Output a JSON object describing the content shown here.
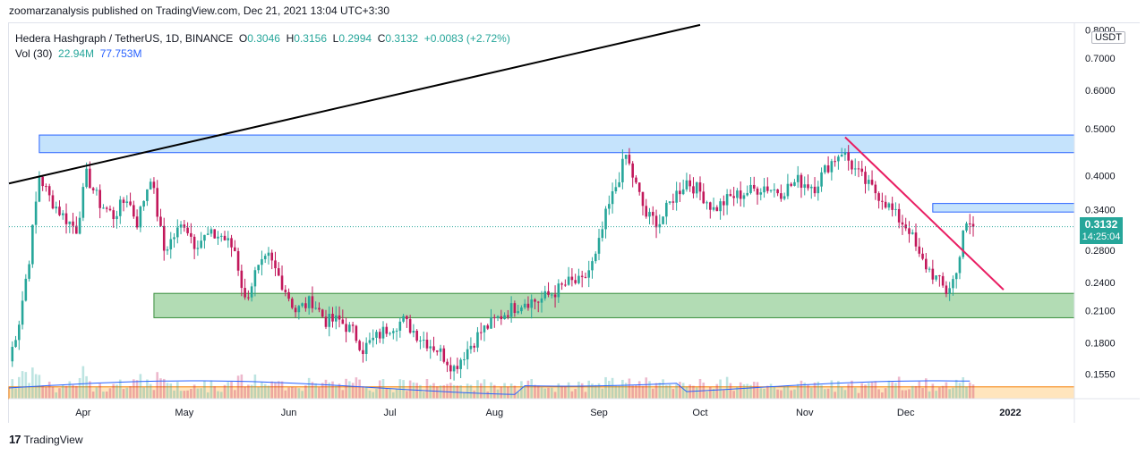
{
  "header": {
    "publish_line": "zoomarzanalysis published on TradingView.com, Dec 21, 2021 13:04 UTC+3:30"
  },
  "legend": {
    "symbol": "Hedera Hashgraph / TetherUS, 1D, BINANCE",
    "open_key": "O",
    "open": "0.3046",
    "high_key": "H",
    "high": "0.3156",
    "low_key": "L",
    "low": "0.2994",
    "close_key": "C",
    "close": "0.3132",
    "change": "+0.0083 (+2.72%)",
    "vol_label": "Vol (30)",
    "vol_value": "22.94M",
    "vol_ma": "77.753M"
  },
  "price_axis": {
    "currency": "USDT",
    "last_price": "0.3132",
    "countdown": "14:25:04"
  },
  "footer": {
    "logo_mark": "17",
    "logo_text": "TradingView"
  },
  "colors": {
    "up": "#26a69a",
    "down": "#c2185b",
    "trendline_black": "#000000",
    "trendline_pink": "#e91e63",
    "resistance_zone": "#bbdefb",
    "support_zone": "#a5d6a7",
    "volume_zone": "#ffe0b2",
    "volume_ma": "#2962ff"
  },
  "chart_data": {
    "type": "candlestick",
    "title": "Hedera Hashgraph / TetherUS, 1D, BINANCE",
    "scale": "log",
    "ylim": [
      0.138,
      0.83
    ],
    "y_ticks": [
      "0.1550",
      "0.1800",
      "0.2100",
      "0.2400",
      "0.2800",
      "0.3400",
      "0.4000",
      "0.5000",
      "0.6000",
      "0.7000",
      "0.8000"
    ],
    "x_ticks": [
      "Apr",
      "May",
      "Jun",
      "Jul",
      "Aug",
      "Sep",
      "Oct",
      "Nov",
      "Dec",
      "2022"
    ],
    "x_range": [
      "2021-03-10",
      "2022-01-20"
    ],
    "last_close": 0.3132,
    "price_path": [
      [
        "2021-03-10",
        0.165
      ],
      [
        "2021-03-13",
        0.2
      ],
      [
        "2021-03-16",
        0.27
      ],
      [
        "2021-03-19",
        0.4
      ],
      [
        "2021-03-22",
        0.36
      ],
      [
        "2021-03-26",
        0.33
      ],
      [
        "2021-03-30",
        0.31
      ],
      [
        "2021-04-02",
        0.4
      ],
      [
        "2021-04-06",
        0.35
      ],
      [
        "2021-04-10",
        0.33
      ],
      [
        "2021-04-14",
        0.36
      ],
      [
        "2021-04-17",
        0.32
      ],
      [
        "2021-04-21",
        0.4
      ],
      [
        "2021-04-25",
        0.28
      ],
      [
        "2021-04-28",
        0.3
      ],
      [
        "2021-05-01",
        0.32
      ],
      [
        "2021-05-04",
        0.29
      ],
      [
        "2021-05-08",
        0.3
      ],
      [
        "2021-05-12",
        0.3
      ],
      [
        "2021-05-16",
        0.28
      ],
      [
        "2021-05-19",
        0.22
      ],
      [
        "2021-05-22",
        0.25
      ],
      [
        "2021-05-26",
        0.27
      ],
      [
        "2021-05-30",
        0.24
      ],
      [
        "2021-06-03",
        0.21
      ],
      [
        "2021-06-08",
        0.22
      ],
      [
        "2021-06-12",
        0.2
      ],
      [
        "2021-06-16",
        0.2
      ],
      [
        "2021-06-20",
        0.19
      ],
      [
        "2021-06-23",
        0.175
      ],
      [
        "2021-06-27",
        0.185
      ],
      [
        "2021-07-01",
        0.195
      ],
      [
        "2021-07-05",
        0.2
      ],
      [
        "2021-07-10",
        0.185
      ],
      [
        "2021-07-15",
        0.175
      ],
      [
        "2021-07-20",
        0.16
      ],
      [
        "2021-07-24",
        0.175
      ],
      [
        "2021-07-28",
        0.19
      ],
      [
        "2021-08-01",
        0.2
      ],
      [
        "2021-08-05",
        0.21
      ],
      [
        "2021-08-10",
        0.22
      ],
      [
        "2021-08-14",
        0.22
      ],
      [
        "2021-08-19",
        0.23
      ],
      [
        "2021-08-23",
        0.24
      ],
      [
        "2021-08-27",
        0.24
      ],
      [
        "2021-08-31",
        0.27
      ],
      [
        "2021-09-03",
        0.33
      ],
      [
        "2021-09-06",
        0.38
      ],
      [
        "2021-09-09",
        0.44
      ],
      [
        "2021-09-12",
        0.38
      ],
      [
        "2021-09-15",
        0.33
      ],
      [
        "2021-09-19",
        0.32
      ],
      [
        "2021-09-23",
        0.36
      ],
      [
        "2021-09-27",
        0.39
      ],
      [
        "2021-10-01",
        0.37
      ],
      [
        "2021-10-05",
        0.34
      ],
      [
        "2021-10-10",
        0.36
      ],
      [
        "2021-10-15",
        0.37
      ],
      [
        "2021-10-20",
        0.38
      ],
      [
        "2021-10-25",
        0.37
      ],
      [
        "2021-10-30",
        0.39
      ],
      [
        "2021-11-04",
        0.38
      ],
      [
        "2021-11-08",
        0.42
      ],
      [
        "2021-11-12",
        0.45
      ],
      [
        "2021-11-16",
        0.41
      ],
      [
        "2021-11-20",
        0.38
      ],
      [
        "2021-11-24",
        0.36
      ],
      [
        "2021-11-28",
        0.33
      ],
      [
        "2021-12-02",
        0.31
      ],
      [
        "2021-12-05",
        0.27
      ],
      [
        "2021-12-09",
        0.25
      ],
      [
        "2021-12-13",
        0.23
      ],
      [
        "2021-12-16",
        0.25
      ],
      [
        "2021-12-18",
        0.31
      ],
      [
        "2021-12-21",
        0.3132
      ]
    ],
    "zones": [
      {
        "name": "resistance-zone",
        "x": [
          "2021-03-19",
          "2022-01-20"
        ],
        "y": [
          0.446,
          0.485
        ]
      },
      {
        "name": "support-zone",
        "x": [
          "2021-04-22",
          "2022-01-20"
        ],
        "y": [
          0.203,
          0.228
        ]
      },
      {
        "name": "right-resistance-zone",
        "x": [
          "2021-12-09",
          "2022-01-20"
        ],
        "y": [
          0.336,
          0.35
        ]
      },
      {
        "name": "volume-zone",
        "x": [
          "2021-03-10",
          "2022-01-20"
        ],
        "y": [
          0.138,
          0.146
        ]
      }
    ],
    "trendlines": [
      {
        "name": "black-trendline",
        "from": [
          "2021-03-10",
          0.385
        ],
        "to": [
          "2021-10-01",
          0.82
        ]
      },
      {
        "name": "pink-trendline",
        "from": [
          "2021-11-13",
          0.48
        ],
        "to": [
          "2021-12-30",
          0.232
        ]
      }
    ]
  }
}
